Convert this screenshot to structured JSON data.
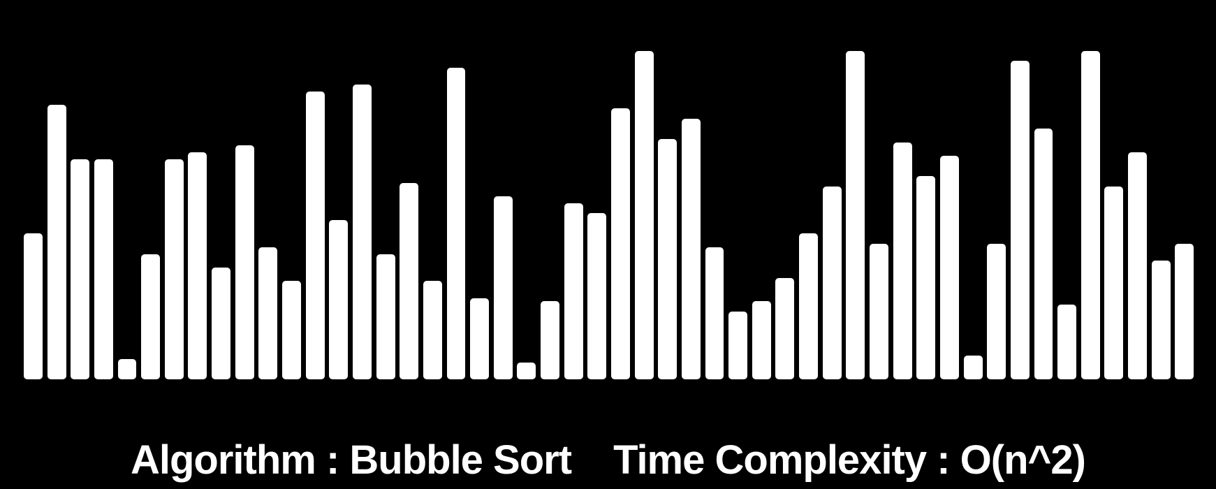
{
  "colors": {
    "background": "#000000",
    "bar": "#ffffff",
    "text": "#ffffff"
  },
  "visualizer": {
    "values": [
      43,
      81,
      65,
      65,
      6,
      37,
      65,
      67,
      33,
      69,
      39,
      29,
      85,
      47,
      87,
      37,
      58,
      29,
      92,
      24,
      54,
      5,
      23,
      52,
      49,
      80,
      97,
      71,
      77,
      39,
      20,
      23,
      30,
      43,
      57,
      97,
      40,
      70,
      60,
      66,
      7,
      40,
      94,
      74,
      22,
      97,
      57,
      67,
      35,
      40
    ],
    "max_value": 100
  },
  "caption": {
    "algorithm_text": "Algorithm : Bubble Sort",
    "complexity_text": "Time Complexity : O(n^2)"
  }
}
